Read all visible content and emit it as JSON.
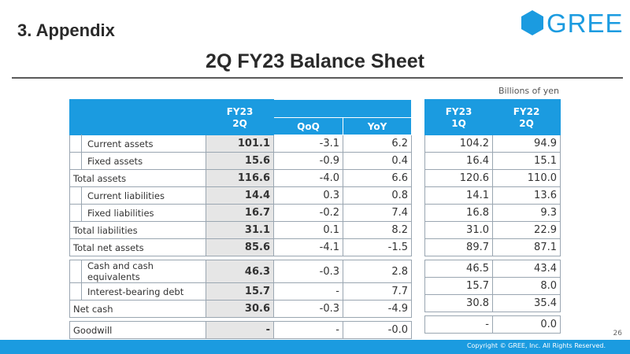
{
  "header": {
    "section": "3. Appendix",
    "logo_text": "GREE",
    "title": "2Q FY23 Balance Sheet",
    "unit": "Billions of yen"
  },
  "columns": {
    "current_line1": "FY23",
    "current_line2": "2Q",
    "qoq": "QoQ",
    "yoy": "YoY",
    "prev_q_line1": "FY23",
    "prev_q_line2": "1Q",
    "prev_y_line1": "FY22",
    "prev_y_line2": "2Q"
  },
  "rows": [
    {
      "label": "Current assets",
      "current": "101.1",
      "qoq": "-3.1",
      "yoy": "6.2",
      "prev_q": "104.2",
      "prev_y": "94.9"
    },
    {
      "label": "Fixed assets",
      "current": "15.6",
      "qoq": "-0.9",
      "yoy": "0.4",
      "prev_q": "16.4",
      "prev_y": "15.1"
    },
    {
      "label": "Total assets",
      "current": "116.6",
      "qoq": "-4.0",
      "yoy": "6.6",
      "prev_q": "120.6",
      "prev_y": "110.0"
    },
    {
      "label": "Current liabilities",
      "current": "14.4",
      "qoq": "0.3",
      "yoy": "0.8",
      "prev_q": "14.1",
      "prev_y": "13.6"
    },
    {
      "label": "Fixed liabilities",
      "current": "16.7",
      "qoq": "-0.2",
      "yoy": "7.4",
      "prev_q": "16.8",
      "prev_y": "9.3"
    },
    {
      "label": "Total liabilities",
      "current": "31.1",
      "qoq": "0.1",
      "yoy": "8.2",
      "prev_q": "31.0",
      "prev_y": "22.9"
    },
    {
      "label": "Total net assets",
      "current": "85.6",
      "qoq": "-4.1",
      "yoy": "-1.5",
      "prev_q": "89.7",
      "prev_y": "87.1"
    },
    {
      "label": "Cash and cash equivalents",
      "current": "46.3",
      "qoq": "-0.3",
      "yoy": "2.8",
      "prev_q": "46.5",
      "prev_y": "43.4"
    },
    {
      "label": "Interest-bearing debt",
      "current": "15.7",
      "qoq": "-",
      "yoy": "7.7",
      "prev_q": "15.7",
      "prev_y": "8.0"
    },
    {
      "label": "Net cash",
      "current": "30.6",
      "qoq": "-0.3",
      "yoy": "-4.9",
      "prev_q": "30.8",
      "prev_y": "35.4"
    },
    {
      "label": "Goodwill",
      "current": "-",
      "qoq": "-",
      "yoy": "-0.0",
      "prev_q": "-",
      "prev_y": "0.0"
    }
  ],
  "footer": {
    "page_number": "26",
    "copyright": "Copyright © GREE, Inc. All Rights Reserved."
  },
  "colors": {
    "brand": "#1b9be0",
    "highlight_cell": "#e6e6e6"
  }
}
